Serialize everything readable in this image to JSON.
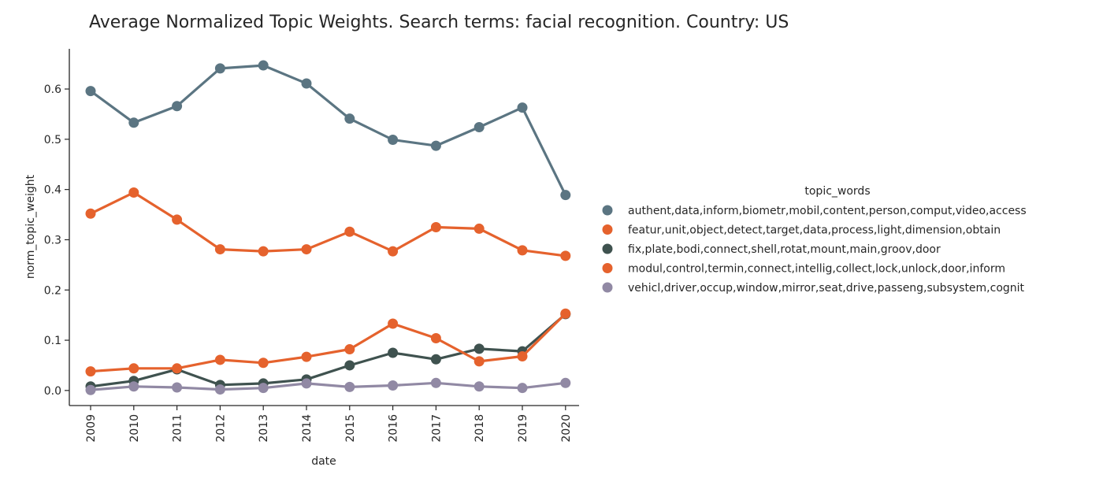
{
  "chart_data": {
    "type": "line",
    "title": "Average Normalized Topic Weights. Search terms: facial recognition. Country: US",
    "xlabel": "date",
    "ylabel": "norm_topic_weight",
    "categories": [
      "2009",
      "2010",
      "2011",
      "2012",
      "2013",
      "2014",
      "2015",
      "2016",
      "2017",
      "2018",
      "2019",
      "2020"
    ],
    "ylim": [
      -0.03,
      0.68
    ],
    "yticks": [
      "0.0",
      "0.1",
      "0.2",
      "0.3",
      "0.4",
      "0.5",
      "0.6"
    ],
    "legend_title": "topic_words",
    "legend_position": "right",
    "grid": false,
    "series": [
      {
        "name": "authent,data,inform,biometr,mobil,content,person,comput,video,access",
        "color": "#5b7582",
        "values": [
          0.596,
          0.533,
          0.566,
          0.641,
          0.647,
          0.611,
          0.541,
          0.499,
          0.487,
          0.524,
          0.563,
          0.389
        ]
      },
      {
        "name": "featur,unit,object,detect,target,data,process,light,dimension,obtain",
        "color": "#e5622d",
        "values": [
          0.352,
          0.394,
          0.34,
          0.281,
          0.277,
          0.281,
          0.316,
          0.277,
          0.325,
          0.322,
          0.279,
          0.268
        ]
      },
      {
        "name": "fix,plate,bodi,connect,shell,rotat,mount,main,groov,door",
        "color": "#3f524f",
        "values": [
          0.008,
          0.019,
          0.042,
          0.011,
          0.014,
          0.022,
          0.05,
          0.075,
          0.062,
          0.083,
          0.078,
          0.152
        ]
      },
      {
        "name": "modul,control,termin,connect,intellig,collect,lock,unlock,door,inform",
        "color": "#e5622d",
        "values": [
          0.038,
          0.044,
          0.044,
          0.061,
          0.055,
          0.067,
          0.082,
          0.133,
          0.104,
          0.058,
          0.068,
          0.153
        ]
      },
      {
        "name": "vehicl,driver,occup,window,mirror,seat,drive,passeng,subsystem,cognit",
        "color": "#9189a4",
        "values": [
          0.001,
          0.008,
          0.006,
          0.002,
          0.005,
          0.014,
          0.007,
          0.01,
          0.015,
          0.008,
          0.005,
          0.015
        ]
      }
    ]
  }
}
